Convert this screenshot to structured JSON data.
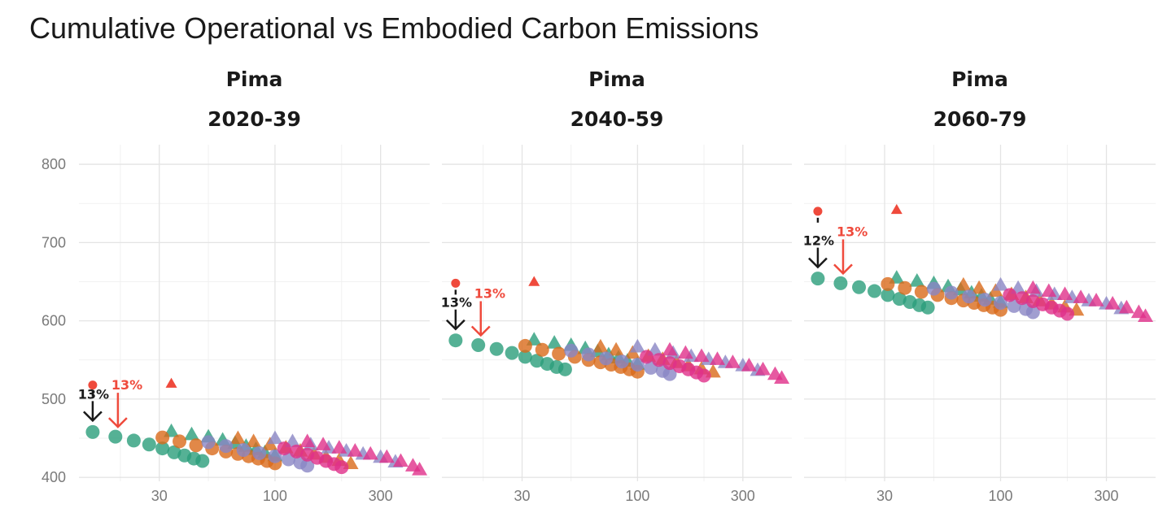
{
  "chart_data": {
    "type": "scatter",
    "title": "Cumulative Operational vs Embodied Carbon Emissions",
    "xscale": "log",
    "xlim": [
      13,
      500
    ],
    "ylim": [
      395,
      825
    ],
    "x_ticks": [
      30,
      100,
      300
    ],
    "y_ticks": [
      400,
      500,
      600,
      700,
      800
    ],
    "x_tick_labels": [
      "30",
      "100",
      "300"
    ],
    "y_tick_labels": [
      "400",
      "500",
      "600",
      "700",
      "800"
    ],
    "grid": true,
    "legend": "none",
    "colors": {
      "green": "#2a9d7a",
      "orange": "#d96a1a",
      "purple": "#8a86c4",
      "pink": "#e0308a",
      "red": "#ef4a3c",
      "black": "#1a1a1a"
    },
    "facets": [
      {
        "region": "Pima",
        "period": "2020-39",
        "offset": 0,
        "red_circle": [
          15,
          518
        ],
        "red_triangle": [
          34,
          520
        ],
        "black_arrow": {
          "x": 15,
          "label": "13%"
        },
        "red_arrow": {
          "x": 19.5,
          "label": "13%"
        }
      },
      {
        "region": "Pima",
        "period": "2040-59",
        "offset": 117,
        "red_circle": [
          15,
          648
        ],
        "red_triangle": [
          34,
          650
        ],
        "black_arrow": {
          "x": 15,
          "label": "13%"
        },
        "red_arrow": {
          "x": 19.5,
          "label": "13%"
        }
      },
      {
        "region": "Pima",
        "period": "2060-79",
        "offset": 196,
        "red_circle": [
          15,
          740
        ],
        "red_triangle": [
          34,
          742
        ],
        "black_arrow": {
          "x": 15,
          "label": "12%"
        },
        "red_arrow": {
          "x": 19.5,
          "label": "13%"
        }
      }
    ],
    "series": [
      {
        "name": "green circles",
        "shape": "circle",
        "color": "green",
        "x": [
          15,
          19,
          23,
          27,
          31,
          35,
          39,
          43,
          47
        ],
        "y": [
          458,
          452,
          447,
          442,
          437,
          432,
          428,
          424,
          421
        ]
      },
      {
        "name": "green triangles",
        "shape": "triangle",
        "color": "green",
        "x": [
          34,
          42,
          50,
          58,
          66,
          74,
          82,
          90,
          100
        ],
        "y": [
          459,
          455,
          452,
          448,
          444,
          440,
          436,
          432,
          428
        ]
      },
      {
        "name": "orange circles",
        "shape": "circle",
        "color": "orange",
        "x": [
          31,
          37,
          44,
          52,
          60,
          68,
          76,
          84,
          92,
          100
        ],
        "y": [
          451,
          446,
          441,
          437,
          433,
          430,
          427,
          424,
          421,
          418
        ]
      },
      {
        "name": "orange triangles",
        "shape": "triangle",
        "color": "orange",
        "x": [
          68,
          80,
          95,
          112,
          130,
          150,
          170,
          195,
          220
        ],
        "y": [
          450,
          446,
          442,
          438,
          434,
          430,
          426,
          422,
          418
        ]
      },
      {
        "name": "purple circles",
        "shape": "circle",
        "color": "purple",
        "x": [
          50,
          60,
          72,
          85,
          100,
          115,
          130,
          140
        ],
        "y": [
          445,
          440,
          435,
          431,
          427,
          423,
          419,
          415
        ]
      },
      {
        "name": "purple triangles",
        "shape": "triangle",
        "color": "purple",
        "x": [
          100,
          120,
          145,
          175,
          210,
          250,
          300,
          350
        ],
        "y": [
          450,
          446,
          442,
          438,
          434,
          430,
          426,
          420
        ]
      },
      {
        "name": "pink circles",
        "shape": "circle",
        "color": "pink",
        "x": [
          110,
          125,
          140,
          155,
          170,
          185,
          200
        ],
        "y": [
          437,
          433,
          429,
          425,
          421,
          417,
          413
        ]
      },
      {
        "name": "pink triangles",
        "shape": "triangle",
        "color": "pink",
        "x": [
          140,
          165,
          195,
          230,
          270,
          320,
          370,
          420,
          450
        ],
        "y": [
          446,
          442,
          438,
          434,
          430,
          426,
          421,
          415,
          410
        ]
      }
    ]
  }
}
